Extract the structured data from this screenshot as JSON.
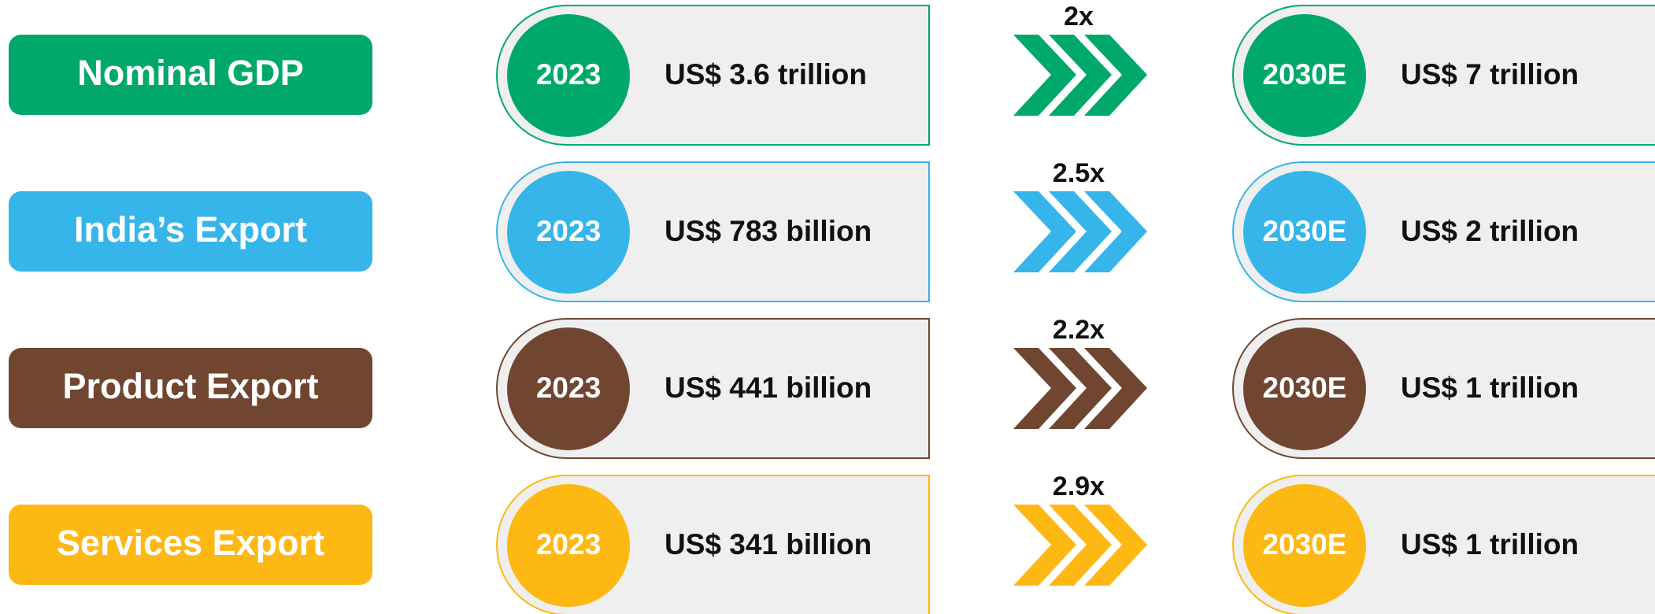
{
  "rows": [
    {
      "label": "Nominal GDP",
      "color": "#00a86b",
      "from_year": "2023",
      "from_value": "US$ 3.6 trillion",
      "multiplier": "2x",
      "to_year": "2030E",
      "to_value": "US$ 7 trillion"
    },
    {
      "label": "India’s Export",
      "color": "#35b5ea",
      "from_year": "2023",
      "from_value": "US$ 783 billion",
      "multiplier": "2.5x",
      "to_year": "2030E",
      "to_value": "US$ 2 trillion"
    },
    {
      "label": "Product Export",
      "color": "#704631",
      "from_year": "2023",
      "from_value": "US$ 441 billion",
      "multiplier": "2.2x",
      "to_year": "2030E",
      "to_value": "US$ 1 trillion"
    },
    {
      "label": "Services Export",
      "color": "#fdb813",
      "from_year": "2023",
      "from_value": "US$ 341 billion",
      "multiplier": "2.9x",
      "to_year": "2030E",
      "to_value": "US$ 1 trillion"
    }
  ]
}
